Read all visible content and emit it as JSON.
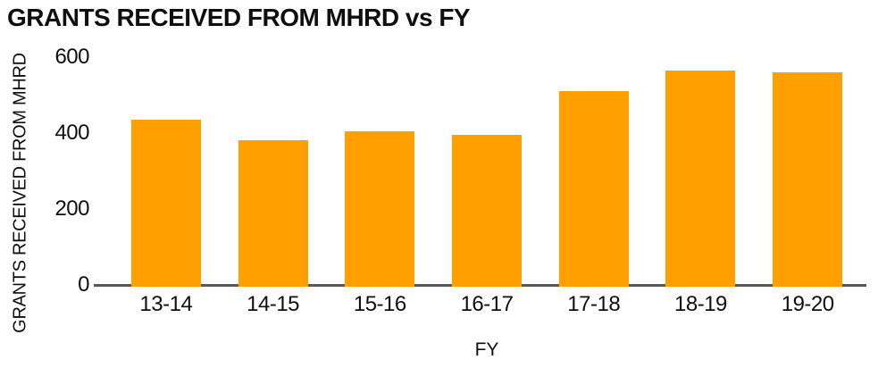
{
  "chart_data": {
    "type": "bar",
    "title": "GRANTS RECEIVED FROM MHRD vs FY",
    "xlabel": "FY",
    "ylabel": "GRANTS RECEIVED FROM MHRD",
    "categories": [
      "13-14",
      "14-15",
      "15-16",
      "16-17",
      "17-18",
      "18-19",
      "19-20"
    ],
    "values": [
      440,
      385,
      410,
      400,
      515,
      570,
      565
    ],
    "ylim": [
      0,
      600
    ],
    "yticks": [
      0,
      200,
      400,
      600
    ],
    "grid": false,
    "legend": false,
    "colors": {
      "bar": "#FFA000",
      "axis_line": "#595959",
      "text": "#0f0f0f",
      "background": "#ffffff"
    }
  }
}
